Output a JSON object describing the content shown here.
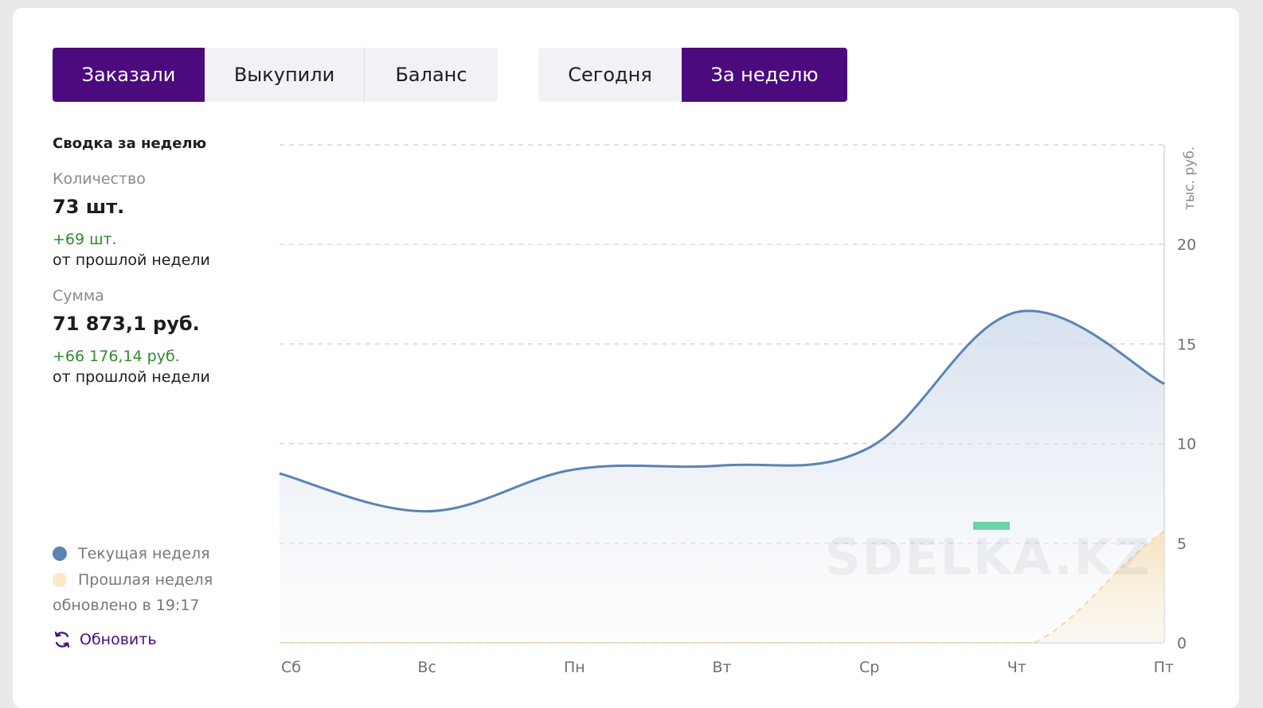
{
  "tabs": {
    "metric": [
      "Заказали",
      "Выкупили",
      "Баланс"
    ],
    "period": [
      "Сегодня",
      "За неделю"
    ]
  },
  "summary": {
    "title": "Сводка за неделю",
    "quantity_label": "Количество",
    "quantity_value": "73 шт.",
    "quantity_delta": "+69 шт.",
    "quantity_from": "от прошлой недели",
    "sum_label": "Сумма",
    "sum_value": "71 873,1 руб.",
    "sum_delta": "+66 176,14 руб.",
    "sum_from": "от прошлой недели"
  },
  "legend": {
    "current": "Текущая неделя",
    "previous": "Прошлая неделя",
    "current_color": "#5b83b3",
    "previous_color": "#fbe9c8"
  },
  "updated": "обновлено в 19:17",
  "refresh_label": "Обновить",
  "watermark": "SDELKA.KZ",
  "colors": {
    "accent": "#4b0a7d",
    "delta_positive": "#2f8a2f"
  },
  "chart_data": {
    "type": "area",
    "categories": [
      "Сб",
      "Вс",
      "Пн",
      "Вт",
      "Ср",
      "Чт",
      "Пт"
    ],
    "ylabel": "тыс. руб.",
    "ylim": [
      0,
      25
    ],
    "yticks": [
      0,
      5,
      10,
      15,
      20
    ],
    "grid": true,
    "y_axis_position": "right",
    "series": [
      {
        "name": "Текущая неделя",
        "values": [
          8.5,
          6.6,
          8.7,
          8.9,
          9.8,
          16.6,
          13.0
        ]
      },
      {
        "name": "Прошлая неделя",
        "values": [
          0,
          0,
          0,
          0,
          0,
          0,
          5.6
        ]
      }
    ]
  }
}
